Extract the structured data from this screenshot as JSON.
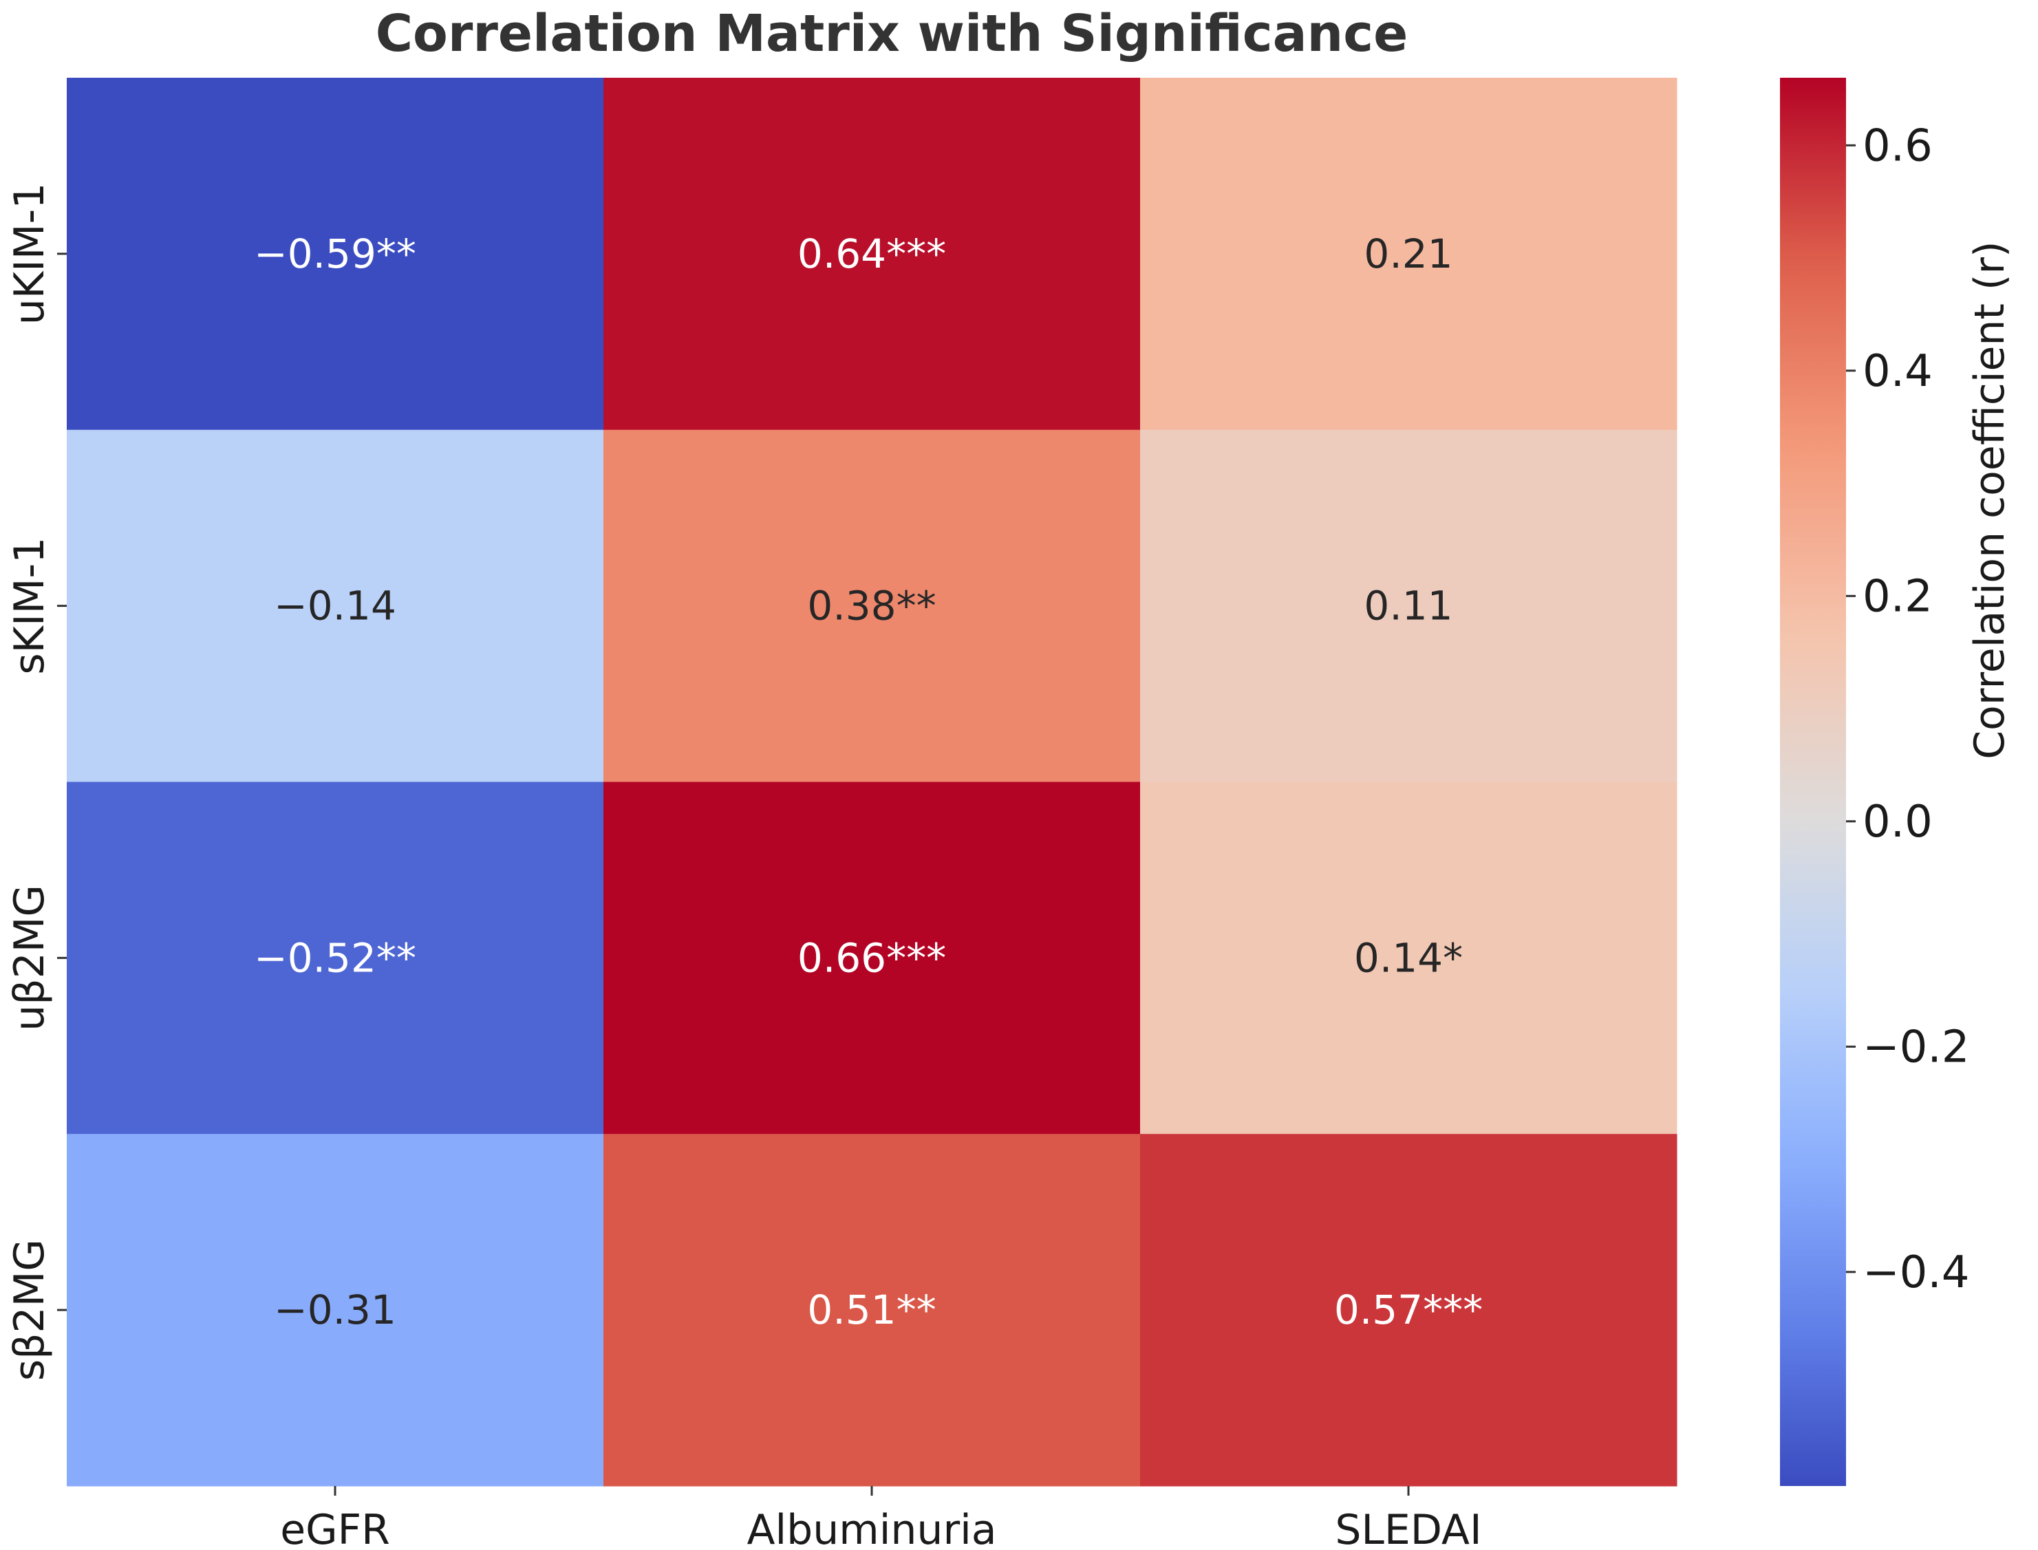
{
  "chart_data": {
    "type": "heatmap",
    "title": "Correlation Matrix with Significance",
    "rows": [
      "uKIM-1",
      "sKIM-1",
      "uβ2MG",
      "sβ2MG"
    ],
    "columns": [
      "eGFR",
      "Albuminuria",
      "SLEDAI"
    ],
    "values": [
      [
        -0.59,
        0.64,
        0.21
      ],
      [
        -0.14,
        0.38,
        0.11
      ],
      [
        -0.52,
        0.66,
        0.14
      ],
      [
        -0.31,
        0.51,
        0.57
      ]
    ],
    "annotations": [
      [
        "−0.59**",
        "0.64***",
        "0.21"
      ],
      [
        "−0.14",
        "0.38**",
        "0.11"
      ],
      [
        "−0.52**",
        "0.66***",
        "0.14*"
      ],
      [
        "−0.31",
        "0.51**",
        "0.57***"
      ]
    ],
    "colormap": "coolwarm",
    "vmin": -0.59,
    "vmax": 0.66,
    "colorbar": {
      "label": "Correlation coefficient (r)",
      "ticks": [
        0.6,
        0.4,
        0.2,
        0.0,
        -0.2,
        -0.4
      ],
      "tick_labels": [
        "0.6",
        "0.4",
        "0.2",
        "0.0",
        "−0.2",
        "−0.4"
      ]
    },
    "colors": {
      "dark_text": "#262626",
      "light_text": "#ffffff"
    }
  }
}
